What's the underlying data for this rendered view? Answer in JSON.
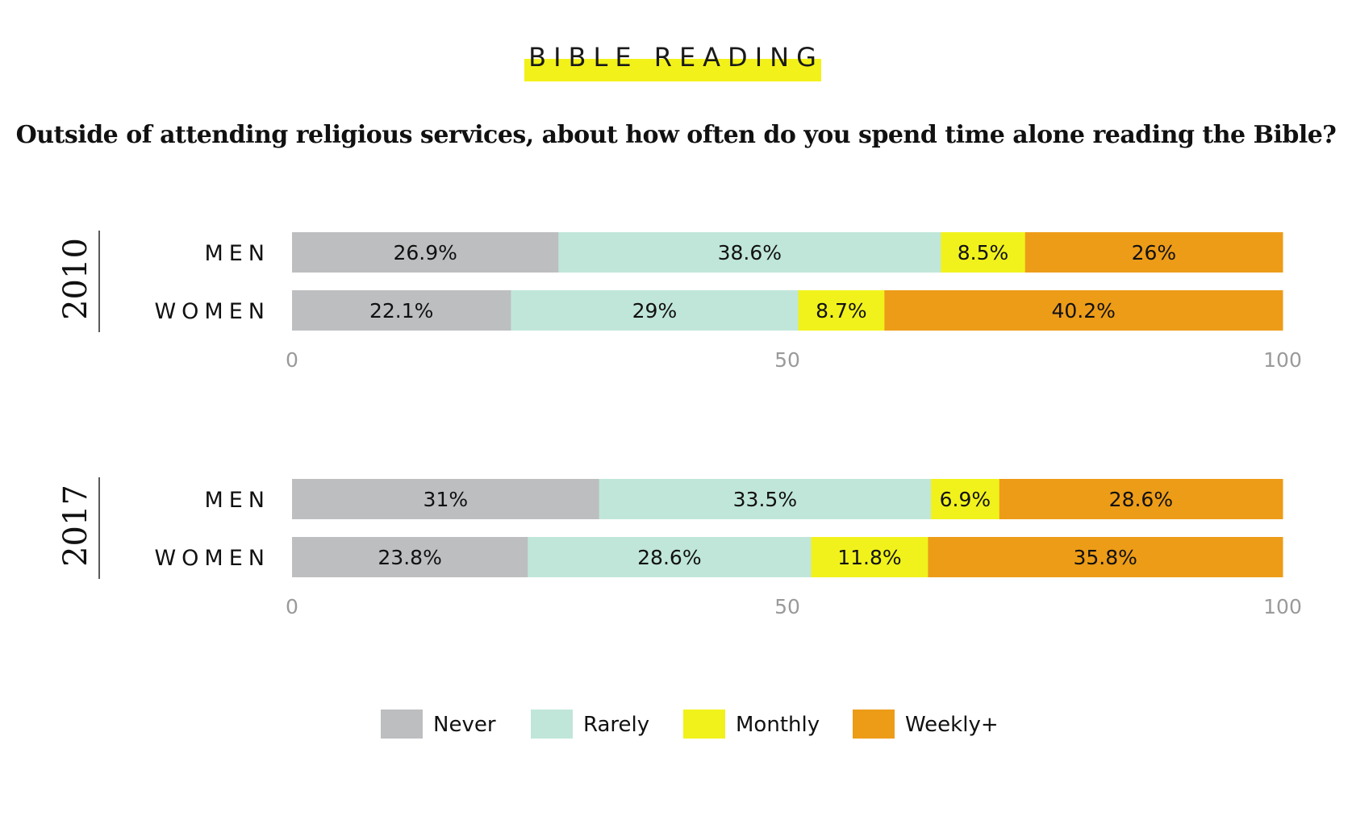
{
  "header": {
    "kicker": "BIBLE READING",
    "question": "Outside of attending religious services, about how often do you spend time alone reading the Bible?"
  },
  "chart_data": {
    "type": "bar",
    "orientation": "horizontal",
    "stacked": true,
    "xlim": [
      0,
      100
    ],
    "xticks": [
      "0",
      "50",
      "100"
    ],
    "categories": [
      "Never",
      "Rarely",
      "Monthly",
      "Weekly+"
    ],
    "colors": [
      "#bdbec0",
      "#c0e6da",
      "#f1f21c",
      "#ed9c18"
    ],
    "groups": [
      {
        "year": "2010",
        "rows": [
          {
            "label": "MEN",
            "values": [
              26.9,
              38.6,
              8.5,
              26
            ],
            "value_labels": [
              "26.9%",
              "38.6%",
              "8.5%",
              "26%"
            ]
          },
          {
            "label": "WOMEN",
            "values": [
              22.1,
              29,
              8.7,
              40.2
            ],
            "value_labels": [
              "22.1%",
              "29%",
              "8.7%",
              "40.2%"
            ]
          }
        ]
      },
      {
        "year": "2017",
        "rows": [
          {
            "label": "MEN",
            "values": [
              31,
              33.5,
              6.9,
              28.6
            ],
            "value_labels": [
              "31%",
              "33.5%",
              "6.9%",
              "28.6%"
            ]
          },
          {
            "label": "WOMEN",
            "values": [
              23.8,
              28.6,
              11.8,
              35.8
            ],
            "value_labels": [
              "23.8%",
              "28.6%",
              "11.8%",
              "35.8%"
            ]
          }
        ]
      }
    ],
    "legend": {
      "position": "bottom",
      "items": [
        "Never",
        "Rarely",
        "Monthly",
        "Weekly+"
      ]
    }
  }
}
